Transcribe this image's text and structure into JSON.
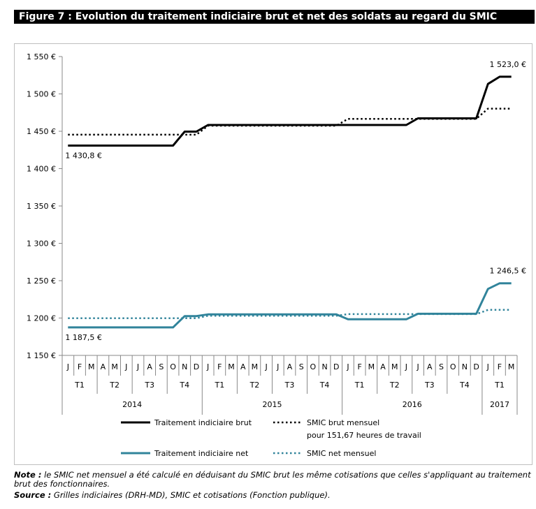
{
  "figure": {
    "title": "Figure 7 : Evolution du traitement indiciaire brut et net des soldats au regard du SMIC"
  },
  "chart_data": {
    "type": "line",
    "x_month_labels": [
      "J",
      "F",
      "M",
      "A",
      "M",
      "J",
      "J",
      "A",
      "S",
      "O",
      "N",
      "D",
      "J",
      "F",
      "M",
      "A",
      "M",
      "J",
      "J",
      "A",
      "S",
      "O",
      "N",
      "D",
      "J",
      "F",
      "M",
      "A",
      "M",
      "J",
      "J",
      "A",
      "S",
      "O",
      "N",
      "D",
      "J",
      "F",
      "M"
    ],
    "quarters": [
      "T1",
      "T2",
      "T3",
      "T4",
      "T1",
      "T2",
      "T3",
      "T4",
      "T1",
      "T2",
      "T3",
      "T4",
      "T1"
    ],
    "years": [
      "2014",
      "2015",
      "2016",
      "2017"
    ],
    "yticks": [
      "1 150 €",
      "1 200 €",
      "1 250 €",
      "1 300 €",
      "1 350 €",
      "1 400 €",
      "1 450 €",
      "1 500 €",
      "1 550 €"
    ],
    "ytick_values": [
      1150,
      1200,
      1250,
      1300,
      1350,
      1400,
      1450,
      1500,
      1550
    ],
    "ylim": [
      1150,
      1550
    ],
    "series": [
      {
        "name": "Traitement indiciaire brut",
        "color": "#000000",
        "style": "solid",
        "values": [
          1430.8,
          1430.8,
          1430.8,
          1430.8,
          1430.8,
          1430.8,
          1430.8,
          1430.8,
          1430.8,
          1430.8,
          1449.5,
          1449.5,
          1458.4,
          1458.4,
          1458.4,
          1458.4,
          1458.4,
          1458.4,
          1458.4,
          1458.4,
          1458.4,
          1458.4,
          1458.4,
          1458.4,
          1458.4,
          1458.4,
          1458.4,
          1458.4,
          1458.4,
          1458.4,
          1467.3,
          1467.3,
          1467.3,
          1467.3,
          1467.3,
          1467.3,
          1513.4,
          1523.0,
          1523.0
        ]
      },
      {
        "name": "SMIC brut mensuel",
        "name_line2": "pour 151,67 heures de travail",
        "color": "#000000",
        "style": "dotted",
        "values": [
          1445.4,
          1445.4,
          1445.4,
          1445.4,
          1445.4,
          1445.4,
          1445.4,
          1445.4,
          1445.4,
          1445.4,
          1445.4,
          1445.4,
          1457.5,
          1457.5,
          1457.5,
          1457.5,
          1457.5,
          1457.5,
          1457.5,
          1457.5,
          1457.5,
          1457.5,
          1457.5,
          1457.5,
          1466.6,
          1466.6,
          1466.6,
          1466.6,
          1466.6,
          1466.6,
          1466.6,
          1466.6,
          1466.6,
          1466.6,
          1466.6,
          1466.6,
          1480.3,
          1480.3,
          1480.3
        ]
      },
      {
        "name": "Traitement indiciaire net",
        "color": "#31849b",
        "style": "solid",
        "values": [
          1187.5,
          1187.5,
          1187.5,
          1187.5,
          1187.5,
          1187.5,
          1187.5,
          1187.5,
          1187.5,
          1187.5,
          1202.6,
          1202.6,
          1204.9,
          1204.9,
          1204.9,
          1204.9,
          1204.9,
          1204.9,
          1204.9,
          1204.9,
          1204.9,
          1204.9,
          1204.9,
          1204.9,
          1198.3,
          1198.3,
          1198.3,
          1198.3,
          1198.3,
          1198.3,
          1205.7,
          1205.7,
          1205.7,
          1205.7,
          1205.7,
          1205.7,
          1239.0,
          1246.5,
          1246.5
        ]
      },
      {
        "name": "SMIC net mensuel",
        "color": "#31849b",
        "style": "dotted",
        "values": [
          1199.8,
          1199.8,
          1199.8,
          1199.8,
          1199.8,
          1199.8,
          1199.8,
          1199.8,
          1199.8,
          1199.8,
          1199.8,
          1199.8,
          1203.1,
          1203.1,
          1203.1,
          1203.1,
          1203.1,
          1203.1,
          1203.1,
          1203.1,
          1203.1,
          1203.1,
          1203.1,
          1203.1,
          1205.2,
          1205.2,
          1205.2,
          1205.2,
          1205.2,
          1205.2,
          1205.2,
          1205.2,
          1205.2,
          1205.2,
          1205.2,
          1205.2,
          1210.9,
          1210.9,
          1210.9
        ]
      }
    ],
    "annotations": [
      {
        "text": "1 523,0 €",
        "x_index": 38,
        "value": 1523.0
      },
      {
        "text": "1 430,8 €",
        "x_index": 0,
        "value": 1430.8
      },
      {
        "text": "1 246,5 €",
        "x_index": 38,
        "value": 1246.5
      },
      {
        "text": "1 187,5 €",
        "x_index": 0,
        "value": 1187.5
      }
    ],
    "grid": false,
    "legend_position": "bottom"
  },
  "notes": {
    "note_label": "Note :",
    "note_text": " le SMIC net mensuel a été calculé en déduisant du SMIC brut les même cotisations que celles s'appliquant au traitement brut des fonctionnaires.",
    "source_label": "Source :",
    "source_text": " Grilles indiciaires (DRH-MD), SMIC et cotisations (Fonction publique)."
  }
}
